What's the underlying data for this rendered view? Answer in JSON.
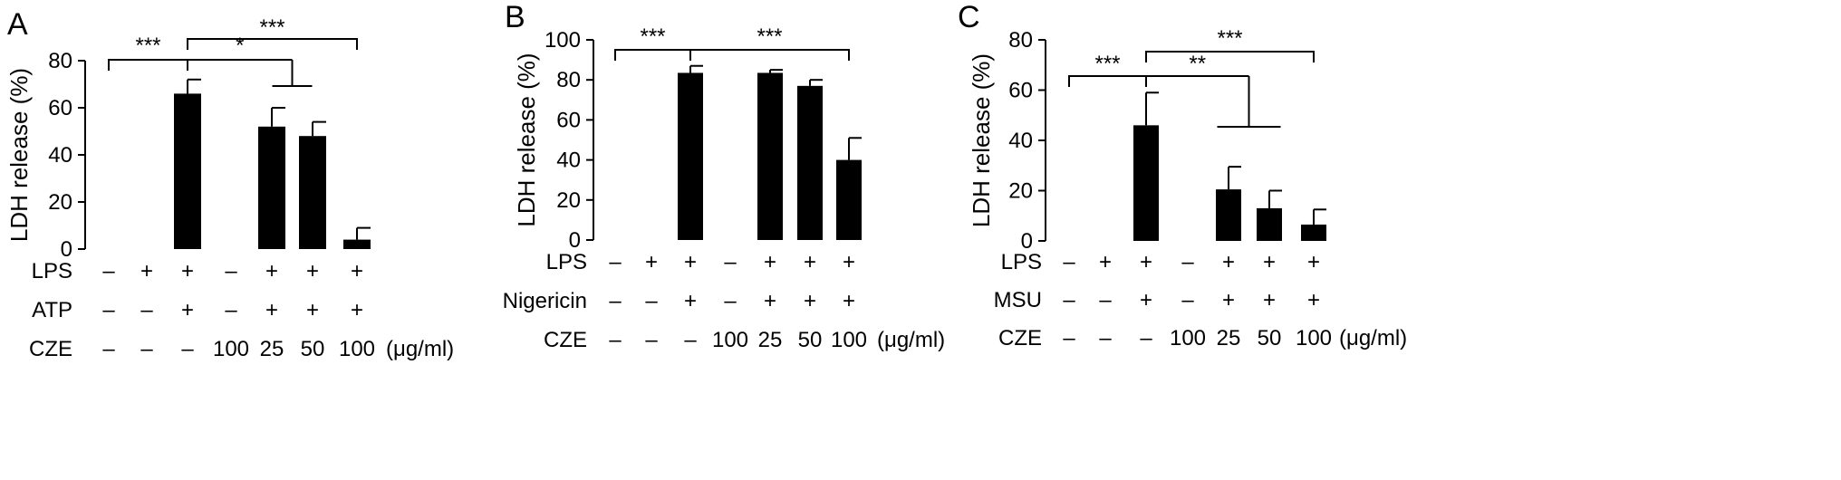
{
  "chart_data": [
    {
      "type": "bar",
      "panel_label": "A",
      "ylabel": "LDH release (%)",
      "ylim": [
        0,
        80
      ],
      "yticks": [
        0,
        20,
        40,
        60,
        80
      ],
      "values": [
        0,
        0,
        66,
        0,
        52,
        48,
        4
      ],
      "errors": [
        0,
        0,
        6,
        0,
        8,
        6,
        5
      ],
      "conditions": [
        {
          "name": "LPS",
          "values": [
            "–",
            "+",
            "+",
            "–",
            "+",
            "+",
            "+"
          ]
        },
        {
          "name": "ATP",
          "values": [
            "–",
            "–",
            "+",
            "–",
            "+",
            "+",
            "+"
          ]
        },
        {
          "name": "CZE",
          "values": [
            "–",
            "–",
            "–",
            "100",
            "25",
            "50",
            "100"
          ],
          "unit": "(μg/ml)"
        }
      ],
      "significance": [
        {
          "label": "***",
          "from": 0,
          "to": 2
        },
        {
          "label": "*",
          "from": 2,
          "to": [
            4,
            5
          ]
        },
        {
          "label": "***",
          "from": 2,
          "to": 6
        }
      ]
    },
    {
      "type": "bar",
      "panel_label": "B",
      "ylabel": "LDH release (%)",
      "ylim": [
        0,
        100
      ],
      "yticks": [
        0,
        20,
        40,
        60,
        80,
        100
      ],
      "values": [
        0,
        0,
        83.5,
        0,
        83.5,
        77,
        40
      ],
      "errors": [
        0,
        0,
        3.5,
        0,
        1.5,
        3,
        11
      ],
      "conditions": [
        {
          "name": "LPS",
          "values": [
            "–",
            "+",
            "+",
            "–",
            "+",
            "+",
            "+"
          ]
        },
        {
          "name": "Nigericin",
          "values": [
            "–",
            "–",
            "+",
            "–",
            "+",
            "+",
            "+"
          ]
        },
        {
          "name": "CZE",
          "values": [
            "–",
            "–",
            "–",
            "100",
            "25",
            "50",
            "100"
          ],
          "unit": "(μg/ml)"
        }
      ],
      "significance": [
        {
          "label": "***",
          "from": 0,
          "to": 2
        },
        {
          "label": "***",
          "from": 2,
          "to": 6
        }
      ]
    },
    {
      "type": "bar",
      "panel_label": "C",
      "ylabel": "LDH release (%)",
      "ylim": [
        0,
        80
      ],
      "yticks": [
        0,
        20,
        40,
        60,
        80
      ],
      "values": [
        0,
        0,
        46,
        0,
        20.5,
        13,
        6.5
      ],
      "errors": [
        0,
        0,
        13,
        0,
        9,
        7,
        6
      ],
      "conditions": [
        {
          "name": "LPS",
          "values": [
            "–",
            "+",
            "+",
            "–",
            "+",
            "+",
            "+"
          ]
        },
        {
          "name": "MSU",
          "values": [
            "–",
            "–",
            "+",
            "–",
            "+",
            "+",
            "+"
          ]
        },
        {
          "name": "CZE",
          "values": [
            "–",
            "–",
            "–",
            "100",
            "25",
            "50",
            "100"
          ],
          "unit": "(μg/ml)"
        }
      ],
      "significance": [
        {
          "label": "***",
          "from": 0,
          "to": 2
        },
        {
          "label": "**",
          "from": 2,
          "to": [
            4,
            5
          ]
        },
        {
          "label": "***",
          "from": 2,
          "to": 6
        }
      ]
    }
  ]
}
